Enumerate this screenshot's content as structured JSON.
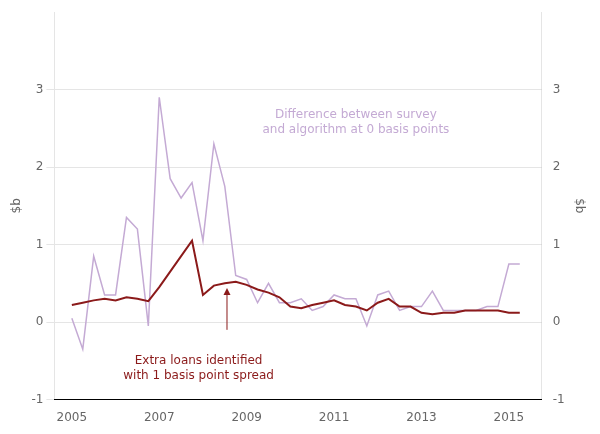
{
  "chart_data": {
    "type": "line",
    "x": [
      2005.0,
      2005.25,
      2005.5,
      2005.75,
      2006.0,
      2006.25,
      2006.5,
      2006.75,
      2007.0,
      2007.25,
      2007.5,
      2007.75,
      2008.0,
      2008.25,
      2008.5,
      2008.75,
      2009.0,
      2009.25,
      2009.5,
      2009.75,
      2010.0,
      2010.25,
      2010.5,
      2010.75,
      2011.0,
      2011.25,
      2011.5,
      2011.75,
      2012.0,
      2012.25,
      2012.5,
      2012.75,
      2013.0,
      2013.25,
      2013.5,
      2013.75,
      2014.0,
      2014.25,
      2014.5,
      2014.75,
      2015.0,
      2015.25
    ],
    "series": [
      {
        "color": "#c4aad4",
        "marker": "none",
        "values": [
          0.05,
          -0.35,
          0.85,
          0.35,
          0.35,
          1.35,
          1.2,
          -0.05,
          2.9,
          1.85,
          1.6,
          1.8,
          1.05,
          2.3,
          1.75,
          0.6,
          0.55,
          0.25,
          0.5,
          0.25,
          0.25,
          0.3,
          0.15,
          0.2,
          0.35,
          0.3,
          0.3,
          -0.05,
          0.35,
          0.4,
          0.15,
          0.2,
          0.2,
          0.4,
          0.15,
          0.15,
          0.15,
          0.15,
          0.2,
          0.2,
          0.75,
          0.75
        ]
      },
      {
        "color": "#8b1a1a",
        "marker": "none",
        "values": [
          0.22,
          0.25,
          0.28,
          0.3,
          0.28,
          0.32,
          0.3,
          0.27,
          0.45,
          0.65,
          0.85,
          1.05,
          0.35,
          0.47,
          0.5,
          0.52,
          0.48,
          0.42,
          0.38,
          0.32,
          0.2,
          0.18,
          0.22,
          0.25,
          0.28,
          0.22,
          0.2,
          0.15,
          0.25,
          0.3,
          0.2,
          0.2,
          0.12,
          0.1,
          0.12,
          0.12,
          0.15,
          0.15,
          0.15,
          0.15,
          0.12,
          0.12
        ]
      }
    ],
    "xlim": [
      2004.6,
      2015.75
    ],
    "xticks": [
      2005,
      2007,
      2009,
      2011,
      2013,
      2015
    ],
    "ylim": [
      -1,
      4
    ],
    "yticks": [
      -1,
      0,
      1,
      2,
      3
    ],
    "y2lim": [
      -1,
      4
    ],
    "y2ticks": [
      -1,
      0,
      1,
      2,
      3
    ],
    "ylabel": "$b",
    "y2label": "$b",
    "grid": "y",
    "annotations": [
      {
        "text": "Difference between survey\nand algorithm at 0 basis points",
        "x": 2011.5,
        "y": 2.75,
        "color": "#c4aad4"
      },
      {
        "text": "Extra loans identified\nwith 1 basis point spread",
        "x": 2007.9,
        "y": -0.42,
        "color": "#8b1a1a"
      }
    ],
    "arrows": [
      {
        "x": [
          2008.55,
          2008.55
        ],
        "y": [
          -0.1,
          0.44
        ],
        "color": "#8b1a1a"
      }
    ]
  }
}
